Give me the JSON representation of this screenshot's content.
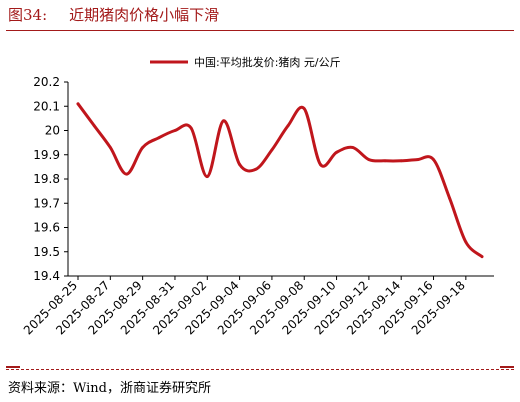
{
  "figure": {
    "title_number": "图34:",
    "title_text": "近期猪肉价格小幅下滑",
    "source": "资料来源：Wind，浙商证券研究所"
  },
  "colors": {
    "accent": "#a31a1a",
    "series": "#c0161c"
  },
  "chart_data": {
    "type": "line",
    "title": "",
    "xlabel": "",
    "ylabel": "",
    "ylim": [
      19.4,
      20.2
    ],
    "y_ticks": [
      "20.2",
      "20.1",
      "20",
      "19.9",
      "19.8",
      "19.7",
      "19.6",
      "19.5",
      "19.4"
    ],
    "x_ticks": [
      "2025-08-25",
      "2025-08-27",
      "2025-08-29",
      "2025-08-31",
      "2025-09-02",
      "2025-09-04",
      "2025-09-06",
      "2025-09-08",
      "2025-09-10",
      "2025-09-12",
      "2025-09-14",
      "2025-09-16",
      "2025-09-18"
    ],
    "x": [
      "2025-08-25",
      "2025-08-26",
      "2025-08-27",
      "2025-08-28",
      "2025-08-29",
      "2025-08-30",
      "2025-08-31",
      "2025-09-01",
      "2025-09-02",
      "2025-09-03",
      "2025-09-04",
      "2025-09-05",
      "2025-09-06",
      "2025-09-07",
      "2025-09-08",
      "2025-09-09",
      "2025-09-10",
      "2025-09-11",
      "2025-09-12",
      "2025-09-13",
      "2025-09-14",
      "2025-09-15",
      "2025-09-16",
      "2025-09-17",
      "2025-09-18",
      "2025-09-19"
    ],
    "legend_position": "top-center",
    "grid": false,
    "series": [
      {
        "name": "中国:平均批发价:猪肉 元/公斤",
        "values": [
          20.11,
          20.02,
          19.93,
          19.82,
          19.93,
          19.97,
          20.0,
          20.01,
          19.81,
          20.04,
          19.86,
          19.84,
          19.92,
          20.02,
          20.09,
          19.86,
          19.91,
          19.93,
          19.88,
          19.875,
          19.875,
          19.88,
          19.88,
          19.72,
          19.54,
          19.48
        ]
      }
    ]
  }
}
